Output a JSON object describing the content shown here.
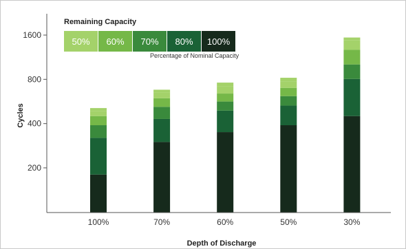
{
  "chart_data": {
    "type": "bar",
    "ylabel": "Cycles",
    "xlabel": "Depth of Discharge",
    "y_tick_labels": [
      "200",
      "400",
      "800",
      "1600"
    ],
    "y_tick_values": [
      200,
      400,
      800,
      1600
    ],
    "ylim": [
      0,
      3200
    ],
    "y_scale": "log",
    "grid": false,
    "categories": [
      "100%",
      "70%",
      "60%",
      "50%",
      "30%"
    ],
    "legend": {
      "title": "Remaining Capacity",
      "subtitle": "Percentage of Nominal Capacity",
      "placement": "top-left"
    },
    "series": [
      {
        "name": "100%",
        "color": "#162a1c",
        "values": [
          180,
          300,
          350,
          390,
          450
        ]
      },
      {
        "name": "80%",
        "color": "#1a6236",
        "values": [
          320,
          430,
          490,
          530,
          805
        ]
      },
      {
        "name": "70%",
        "color": "#3a8a3c",
        "values": [
          390,
          520,
          565,
          615,
          1010
        ]
      },
      {
        "name": "60%",
        "color": "#75b848",
        "values": [
          450,
          595,
          640,
          700,
          1270
        ]
      },
      {
        "name": "50%",
        "color": "#a4d26a",
        "values": [
          485,
          650,
          720,
          770,
          1480
        ]
      }
    ],
    "peak_values": [
      510,
      680,
      760,
      820,
      1540
    ]
  }
}
